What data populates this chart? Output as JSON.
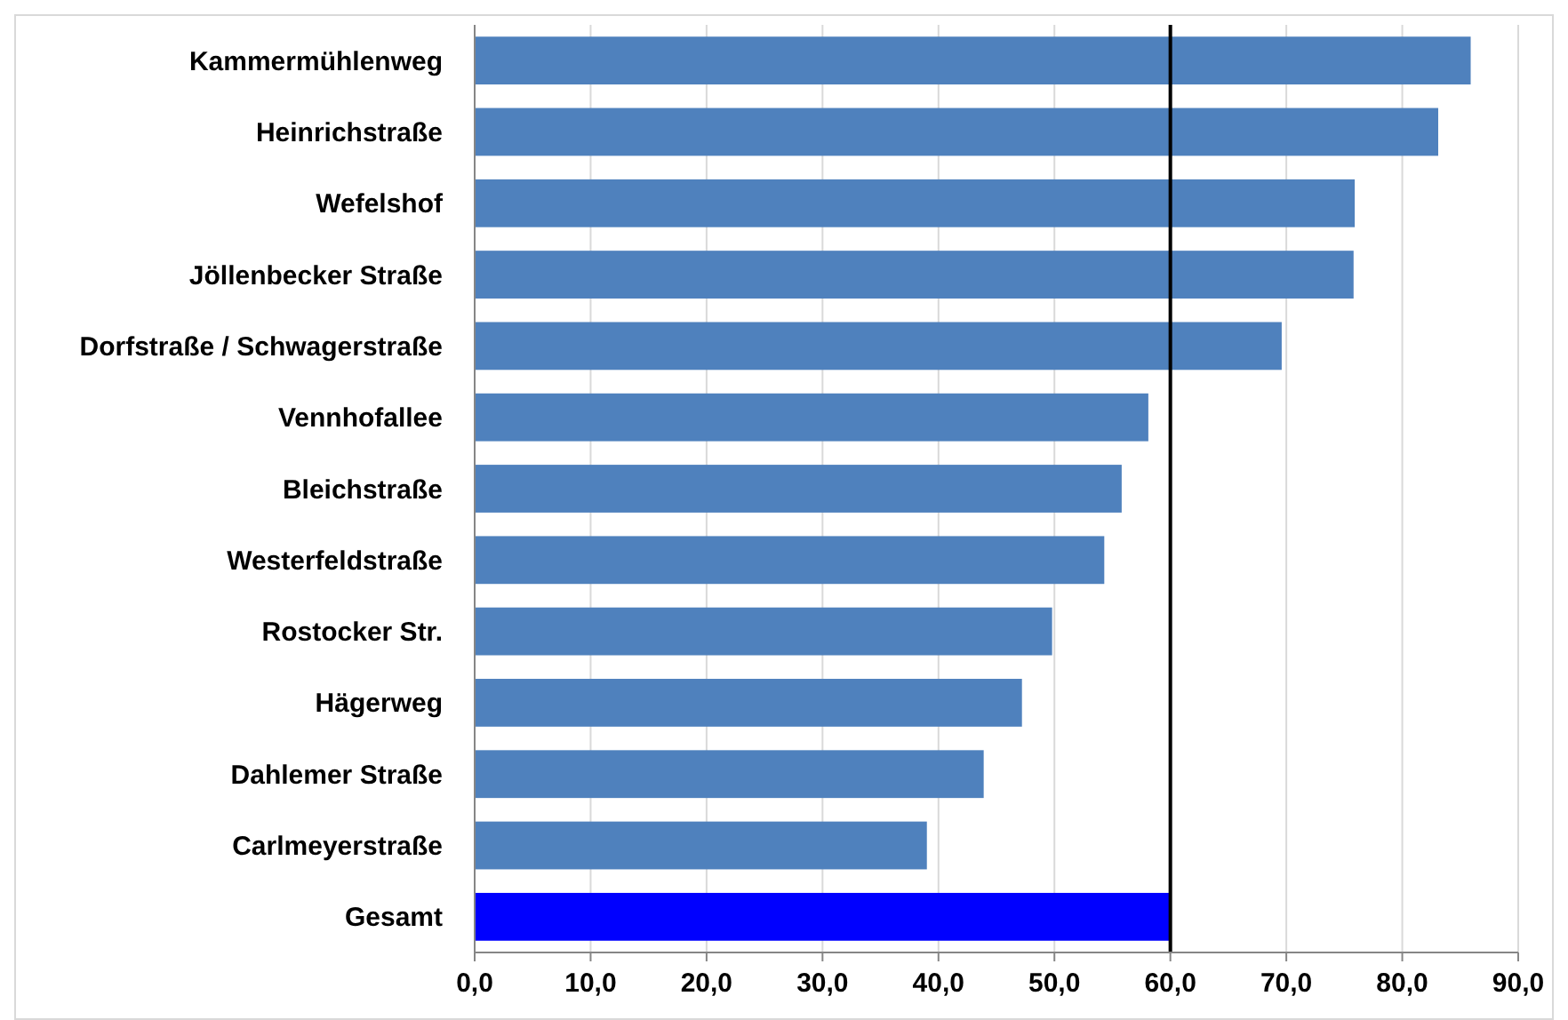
{
  "chart_data": {
    "type": "bar",
    "orientation": "horizontal",
    "categories": [
      "Kammermühlenweg",
      "Heinrichstraße",
      "Wefelshof",
      "Jöllenbecker Straße",
      "Dorfstraße / Schwagerstraße",
      "Vennhofallee",
      "Bleichstraße",
      "Westerfeldstraße",
      "Rostocker Str.",
      "Hägerweg",
      "Dahlemer Straße",
      "Carlmeyerstraße",
      "Gesamt"
    ],
    "values": [
      85.9,
      83.1,
      75.9,
      75.8,
      69.6,
      58.1,
      55.8,
      54.3,
      49.8,
      47.2,
      43.9,
      39.0,
      60.0
    ],
    "colors": [
      "#4f81bd",
      "#4f81bd",
      "#4f81bd",
      "#4f81bd",
      "#4f81bd",
      "#4f81bd",
      "#4f81bd",
      "#4f81bd",
      "#4f81bd",
      "#4f81bd",
      "#4f81bd",
      "#4f81bd",
      "#0000ff"
    ],
    "xlim": [
      0,
      90
    ],
    "xticks": [
      {
        "value": 0,
        "label": "0,0"
      },
      {
        "value": 10,
        "label": "10,0"
      },
      {
        "value": 20,
        "label": "20,0"
      },
      {
        "value": 30,
        "label": "30,0"
      },
      {
        "value": 40,
        "label": "40,0"
      },
      {
        "value": 50,
        "label": "50,0"
      },
      {
        "value": 60,
        "label": "60,0"
      },
      {
        "value": 70,
        "label": "70,0"
      },
      {
        "value": 80,
        "label": "80,0"
      },
      {
        "value": 90,
        "label": "90,0"
      }
    ],
    "grid": "x",
    "ref_lines": [
      {
        "axis": "x",
        "value": 60,
        "color": "#000000"
      }
    ]
  }
}
